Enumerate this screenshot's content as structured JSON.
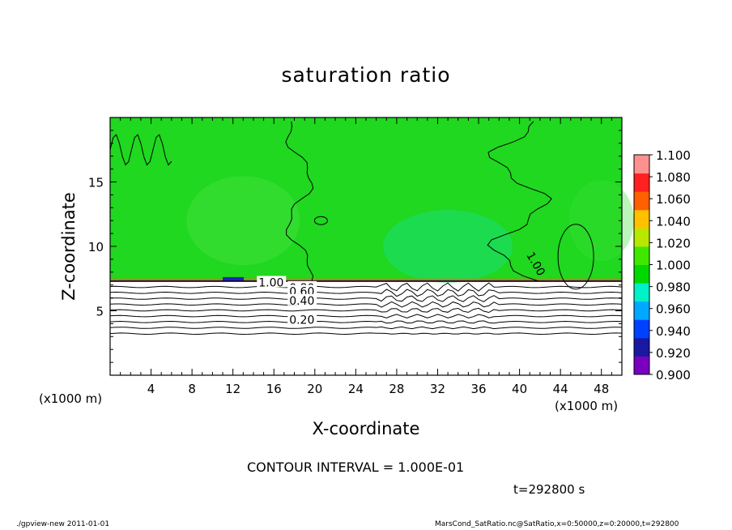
{
  "chart_data": {
    "type": "heatmap",
    "title": "saturation ratio",
    "xlabel": "X-coordinate",
    "ylabel": "Z-coordinate",
    "x_unit_left": "(x1000 m)",
    "x_unit_right": "(x1000 m)",
    "xlim": [
      0,
      50
    ],
    "ylim": [
      0,
      20
    ],
    "x_ticks": [
      4,
      8,
      12,
      16,
      20,
      24,
      28,
      32,
      36,
      40,
      44,
      48
    ],
    "y_ticks": [
      5,
      10,
      15
    ],
    "contour_labels": [
      {
        "text": "1.00",
        "x": 14.5,
        "z": 7.2
      },
      {
        "text": "0.80",
        "x": 17.5,
        "z": 6.8
      },
      {
        "text": "0.60",
        "x": 17.5,
        "z": 6.5
      },
      {
        "text": "0.40",
        "x": 17.5,
        "z": 5.8
      },
      {
        "text": "0.20",
        "x": 17.5,
        "z": 4.3
      },
      {
        "text": "1.00",
        "x": 41.0,
        "z": 9.5
      }
    ],
    "contour_levels_below_interface": [
      0.1,
      0.2,
      0.3,
      0.4,
      0.5,
      0.6,
      0.7,
      0.8,
      0.9
    ],
    "interface_height": 7.3,
    "colorbar": {
      "levels": [
        0.9,
        0.92,
        0.94,
        0.96,
        0.98,
        1.0,
        1.02,
        1.04,
        1.06,
        1.08,
        1.1
      ],
      "labels": [
        "0.900",
        "0.920",
        "0.940",
        "0.960",
        "0.980",
        "1.000",
        "1.020",
        "1.040",
        "1.060",
        "1.080",
        "1.100"
      ],
      "colors": [
        "#7a00c0",
        "#1818a0",
        "#0040ff",
        "#00a8ff",
        "#00f0c8",
        "#00d800",
        "#40e800",
        "#b8e800",
        "#ffc000",
        "#ff6000",
        "#ff2020",
        "#ff9090"
      ]
    },
    "contour_interval_text": "CONTOUR INTERVAL = 1.000E-01",
    "time_text": "t=292800 s"
  },
  "footer": {
    "left": "./gpview-new   2011-01-01",
    "right": "MarsCond_SatRatio.nc@SatRatio,x=0:50000,z=0:20000,t=292800"
  }
}
